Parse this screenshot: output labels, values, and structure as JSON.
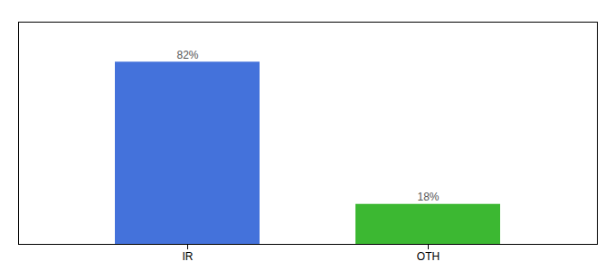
{
  "chart_data": {
    "type": "bar",
    "categories": [
      "IR",
      "OTH"
    ],
    "values": [
      82,
      18
    ],
    "value_labels": [
      "82%",
      "18%"
    ],
    "colors": [
      "#4472db",
      "#3cb832"
    ],
    "ylim": [
      0,
      100
    ],
    "data_labels": true,
    "tick_labels": "x"
  }
}
